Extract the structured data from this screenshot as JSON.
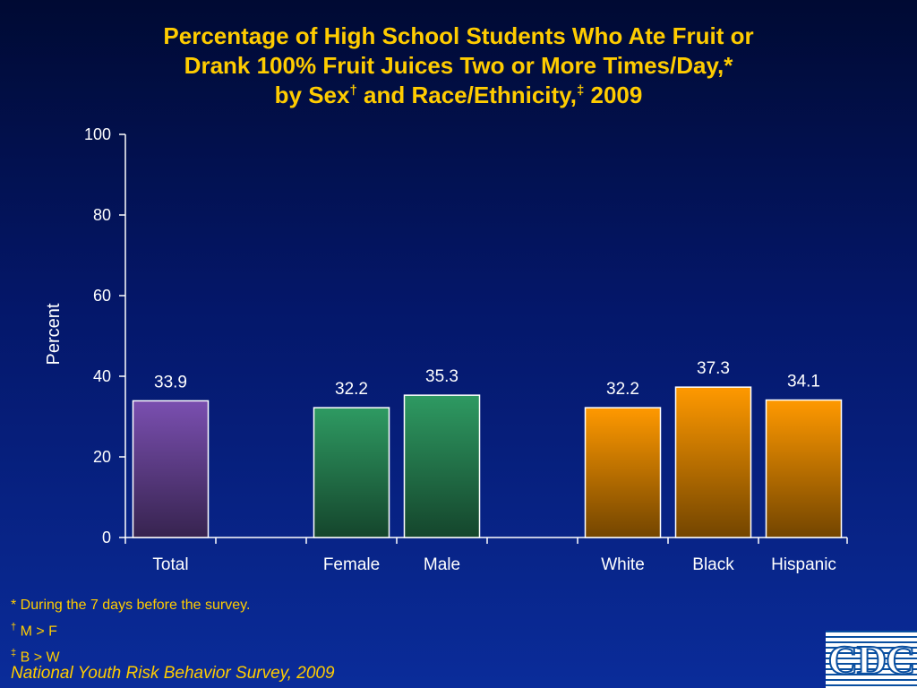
{
  "title": {
    "line1": "Percentage of High School Students Who Ate Fruit or",
    "line2": "Drank 100% Fruit Juices Two or More Times/Day,*",
    "line3_a": "by Sex",
    "line3_dag": "†",
    "line3_b": " and Race/Ethnicity,",
    "line3_ddag": "‡",
    "line3_c": " 2009"
  },
  "chart_data": {
    "type": "bar",
    "categories": [
      "Total",
      "Female",
      "Male",
      "White",
      "Black",
      "Hispanic"
    ],
    "values": [
      33.9,
      32.2,
      35.3,
      32.2,
      37.3,
      34.1
    ],
    "value_labels": [
      "33.9",
      "32.2",
      "35.3",
      "32.2",
      "37.3",
      "34.1"
    ],
    "groups": [
      [
        0
      ],
      [
        1,
        2
      ],
      [
        3,
        4,
        5
      ]
    ],
    "bar_colors": [
      "#7a4fb0",
      "#2e9a62",
      "#2e9a62",
      "#ff9900",
      "#ff9900",
      "#ff9900"
    ],
    "ylabel": "Percent",
    "ylim": [
      0,
      100
    ],
    "yticks": [
      "0",
      "20",
      "40",
      "60",
      "80",
      "100"
    ],
    "grid": false
  },
  "footnotes": {
    "note1": "* During the 7 days before the survey.",
    "note2_mark": "†",
    "note2_text": " M > F",
    "note3_mark": "‡",
    "note3_text": " B > W"
  },
  "source": "National Youth Risk Behavior Survey, 2009",
  "logo": {
    "text": "CDC"
  }
}
